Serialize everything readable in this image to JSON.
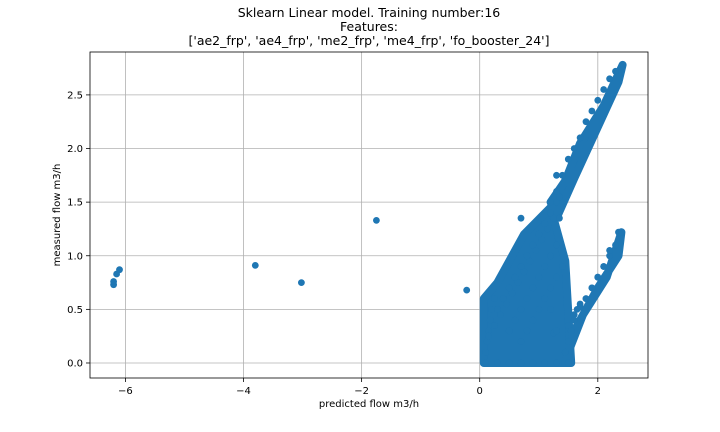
{
  "chart_data": {
    "type": "scatter",
    "title_lines": [
      "Sklearn Linear model. Training number:16",
      "Features:",
      "['ae2_frp', 'ae4_frp', 'me2_frp', 'me4_frp', 'fo_booster_24']"
    ],
    "xlabel": "predicted flow m3/h",
    "ylabel": "measured flow m3/h",
    "xlim": [
      -6.6,
      2.85
    ],
    "ylim": [
      -0.14,
      2.9
    ],
    "grid": true,
    "xticks": [
      -6,
      -4,
      -2,
      0,
      2
    ],
    "xtick_labels": [
      "−6",
      "−4",
      "−2",
      "0",
      "2"
    ],
    "yticks": [
      0.0,
      0.5,
      1.0,
      1.5,
      2.0,
      2.5
    ],
    "ytick_labels": [
      "0.0",
      "0.5",
      "1.0",
      "1.5",
      "2.0",
      "2.5"
    ],
    "marker_color": "#1f77b4",
    "series": [
      {
        "x": [
          -6.2,
          -6.2,
          -6.15,
          -6.1,
          -3.8,
          -3.02,
          -1.75,
          -0.22,
          0.1,
          0.3,
          0.5,
          0.7,
          0.9,
          1.1,
          1.3,
          1.5,
          0.1,
          0.12,
          0.15,
          0.18,
          0.2,
          0.25,
          0.15,
          0.25,
          0.35,
          0.45,
          0.55,
          0.65,
          0.75,
          0.85,
          0.95,
          1.05,
          1.15,
          1.25,
          0.3,
          0.4,
          0.5,
          0.6,
          0.7,
          0.8,
          0.9,
          1.0,
          1.1,
          1.2,
          1.3,
          1.35,
          0.5,
          0.6,
          0.7,
          0.8,
          0.9,
          1.0,
          1.1,
          1.2,
          1.3,
          0.7,
          0.8,
          0.9,
          1.0,
          1.1,
          1.2,
          1.3,
          1.4,
          1.3,
          1.4,
          1.5,
          1.6,
          1.7,
          1.8,
          1.9,
          2.0,
          2.1,
          2.2,
          2.3,
          2.4,
          1.3,
          1.2,
          1.35,
          1.5,
          1.6,
          1.7,
          1.8,
          1.9,
          2.0,
          2.1,
          2.2,
          2.3,
          2.4,
          1.45,
          1.5,
          1.55,
          1.6,
          1.65,
          1.7,
          1.8,
          1.9,
          2.0,
          2.1,
          2.2,
          2.35,
          2.4,
          0.7,
          1.2,
          1.25,
          1.5,
          1.3
        ],
        "y": [
          0.73,
          0.76,
          0.83,
          0.87,
          0.91,
          0.75,
          1.33,
          0.68,
          0.0,
          0.0,
          0.0,
          0.0,
          0.0,
          0.0,
          0.0,
          0.0,
          0.1,
          0.2,
          0.3,
          0.4,
          0.5,
          0.6,
          0.25,
          0.35,
          0.45,
          0.55,
          0.65,
          0.75,
          0.85,
          0.95,
          1.05,
          1.15,
          1.25,
          1.35,
          0.5,
          0.6,
          0.7,
          0.8,
          0.9,
          1.0,
          1.1,
          1.2,
          1.3,
          1.4,
          1.5,
          1.55,
          0.3,
          0.4,
          0.5,
          0.6,
          0.7,
          0.8,
          0.9,
          1.0,
          1.1,
          0.2,
          0.3,
          0.4,
          0.5,
          0.6,
          0.7,
          0.8,
          0.9,
          1.6,
          1.75,
          1.9,
          2.0,
          2.1,
          2.25,
          2.35,
          2.45,
          2.55,
          2.65,
          2.72,
          2.76,
          1.75,
          1.5,
          1.35,
          0.35,
          0.45,
          0.52,
          0.6,
          0.7,
          0.8,
          0.9,
          1.0,
          1.1,
          1.22,
          0.1,
          0.2,
          0.3,
          0.4,
          0.5,
          0.55,
          0.6,
          0.7,
          0.8,
          0.9,
          1.05,
          1.22,
          1.22,
          1.35,
          0.5,
          0.28,
          0.0,
          0.3
        ]
      }
    ]
  }
}
